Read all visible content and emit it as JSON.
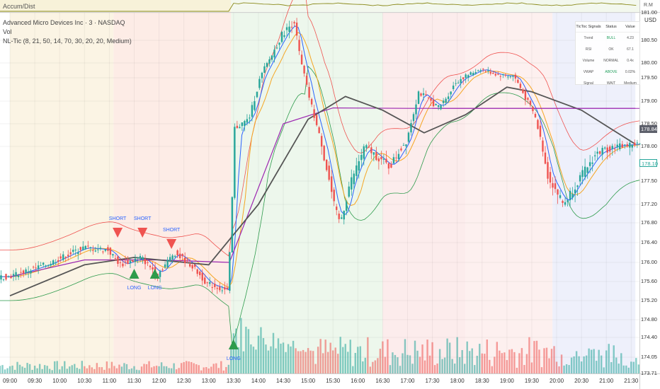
{
  "indicator_top": {
    "label": "Accum/Dist",
    "corner_label": "R.M"
  },
  "legend": {
    "symbol_line": "Advanced Micro Devices Inc · 3 · NASDAQ",
    "vol_line": "Vol",
    "indicator_line": "NL-Tic (8, 21, 50, 14, 70, 30, 20, 20, Medium)"
  },
  "currency": "USD",
  "signals_table": {
    "headers": [
      "TicToc Signals",
      "Status",
      "Value"
    ],
    "rows": [
      {
        "signal": "Trend",
        "status": "BULL",
        "value": "4.23",
        "status_color": "#1f9e5a"
      },
      {
        "signal": "RSI",
        "status": "OK",
        "value": "67.1",
        "status_color": "#555555"
      },
      {
        "signal": "Volume",
        "status": "NORMAL",
        "value": "0.4x",
        "status_color": "#555555"
      },
      {
        "signal": "VWAP",
        "status": "ABOVE",
        "value": "0.02%",
        "status_color": "#1f9e5a"
      },
      {
        "signal": "Signal",
        "status": "WAIT",
        "value": "Medium",
        "status_color": "#555555"
      }
    ]
  },
  "price_tags": {
    "current": "178.84",
    "last": "178.10"
  },
  "annotations": [
    {
      "text": "SHORT",
      "time": "11:10",
      "kind": "short"
    },
    {
      "text": "SHORT",
      "time": "11:40",
      "kind": "short"
    },
    {
      "text": "SHORT",
      "time": "12:15",
      "kind": "short"
    },
    {
      "text": "LONG",
      "time": "11:30",
      "kind": "long"
    },
    {
      "text": "LONG",
      "time": "11:55",
      "kind": "long"
    },
    {
      "text": "LONG",
      "time": "13:30",
      "kind": "long"
    }
  ],
  "colors": {
    "up": "#26a69a",
    "down": "#ef5350",
    "vwap": "#9c27b0",
    "ema_slow": "#555555",
    "upper_band": "#ef5350",
    "lower_band": "#2e9b4c",
    "ema_fast": "#f5a623",
    "ema_mid": "#2962ff"
  },
  "chart_data": {
    "type": "candlestick",
    "x_label": "",
    "y_label": "",
    "y_range": [
      173.71,
      181.1
    ],
    "y_ticks": [
      181.0,
      180.5,
      180.0,
      179.5,
      179.0,
      178.5,
      178.0,
      177.5,
      177.2,
      176.8,
      176.4,
      176.0,
      175.6,
      175.2,
      174.8,
      174.4,
      174.05,
      173.71
    ],
    "x_ticks": [
      "09:00",
      "09:30",
      "10:00",
      "10:30",
      "11:00",
      "11:30",
      "12:00",
      "12:30",
      "13:00",
      "13:30",
      "14:00",
      "14:30",
      "15:00",
      "15:30",
      "16:00",
      "16:30",
      "17:00",
      "17:30",
      "18:00",
      "18:30",
      "19:00",
      "19:30",
      "20:00",
      "20:30",
      "21:00",
      "21:30"
    ],
    "x_range_minutes": [
      528,
      1300
    ],
    "reference_level": 178.84,
    "close_path": [
      {
        "t": "09:00",
        "y": 175.7
      },
      {
        "t": "09:45",
        "y": 175.95
      },
      {
        "t": "10:30",
        "y": 176.3
      },
      {
        "t": "11:00",
        "y": 176.25
      },
      {
        "t": "11:15",
        "y": 175.95
      },
      {
        "t": "11:40",
        "y": 176.1
      },
      {
        "t": "12:00",
        "y": 175.75
      },
      {
        "t": "12:20",
        "y": 176.2
      },
      {
        "t": "12:40",
        "y": 175.95
      },
      {
        "t": "13:00",
        "y": 175.55
      },
      {
        "t": "13:25",
        "y": 175.4
      },
      {
        "t": "13:33",
        "y": 178.4
      },
      {
        "t": "13:50",
        "y": 178.6
      },
      {
        "t": "14:10",
        "y": 179.9
      },
      {
        "t": "14:30",
        "y": 180.6
      },
      {
        "t": "14:45",
        "y": 180.85
      },
      {
        "t": "15:00",
        "y": 179.3
      },
      {
        "t": "15:20",
        "y": 177.9
      },
      {
        "t": "15:40",
        "y": 176.8
      },
      {
        "t": "15:50",
        "y": 177.4
      },
      {
        "t": "16:10",
        "y": 178.0
      },
      {
        "t": "16:40",
        "y": 177.7
      },
      {
        "t": "17:00",
        "y": 178.1
      },
      {
        "t": "17:15",
        "y": 179.2
      },
      {
        "t": "17:40",
        "y": 178.85
      },
      {
        "t": "18:00",
        "y": 179.4
      },
      {
        "t": "18:30",
        "y": 179.8
      },
      {
        "t": "18:50",
        "y": 179.6
      },
      {
        "t": "19:10",
        "y": 179.55
      },
      {
        "t": "19:35",
        "y": 178.7
      },
      {
        "t": "19:50",
        "y": 177.6
      },
      {
        "t": "20:10",
        "y": 177.2
      },
      {
        "t": "20:30",
        "y": 177.55
      },
      {
        "t": "20:50",
        "y": 177.9
      },
      {
        "t": "21:10",
        "y": 178.0
      },
      {
        "t": "21:35",
        "y": 178.05
      }
    ],
    "series": [
      {
        "name": "",
        "key": "vwap",
        "color": "#9c27b0",
        "points": [
          {
            "t": "09:00",
            "y": 175.7
          },
          {
            "t": "10:30",
            "y": 176.05
          },
          {
            "t": "12:00",
            "y": 176.05
          },
          {
            "t": "13:25",
            "y": 176.0
          },
          {
            "t": "14:30",
            "y": 178.5
          },
          {
            "t": "15:30",
            "y": 178.85
          },
          {
            "t": "17:00",
            "y": 178.84
          },
          {
            "t": "21:35",
            "y": 178.84
          }
        ]
      },
      {
        "name": "",
        "key": "ema_slow",
        "color": "#555555",
        "points": [
          {
            "t": "09:00",
            "y": 175.3
          },
          {
            "t": "10:30",
            "y": 175.95
          },
          {
            "t": "11:30",
            "y": 176.1
          },
          {
            "t": "13:00",
            "y": 175.95
          },
          {
            "t": "14:00",
            "y": 177.2
          },
          {
            "t": "15:00",
            "y": 178.6
          },
          {
            "t": "15:45",
            "y": 179.1
          },
          {
            "t": "16:30",
            "y": 178.8
          },
          {
            "t": "17:20",
            "y": 178.3
          },
          {
            "t": "18:10",
            "y": 178.7
          },
          {
            "t": "19:00",
            "y": 179.3
          },
          {
            "t": "19:30",
            "y": 179.2
          },
          {
            "t": "20:30",
            "y": 178.8
          },
          {
            "t": "21:35",
            "y": 178.05
          }
        ]
      }
    ],
    "volume_scale": "relative"
  }
}
